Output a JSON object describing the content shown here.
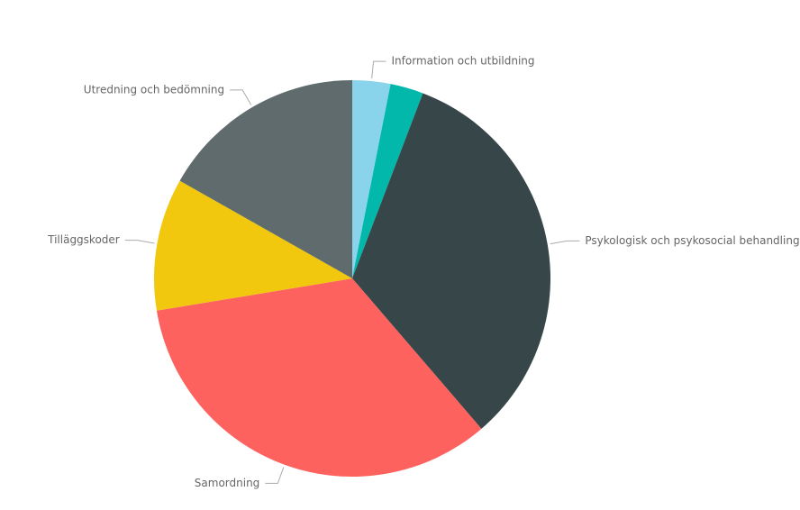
{
  "chart_data": {
    "type": "pie",
    "categories": [
      "Information och utbildning",
      null,
      "Psykologisk och psykosocial behandling",
      "Samordning",
      "Tilläggskoder",
      "Utredning och bedömning"
    ],
    "values": [
      3.1,
      2.7,
      32.9,
      33.7,
      10.8,
      16.8
    ],
    "colors": [
      "#8AD4EB",
      "#01B8AA",
      "#374649",
      "#FD625E",
      "#F2C80F",
      "#5F6B6D"
    ]
  }
}
